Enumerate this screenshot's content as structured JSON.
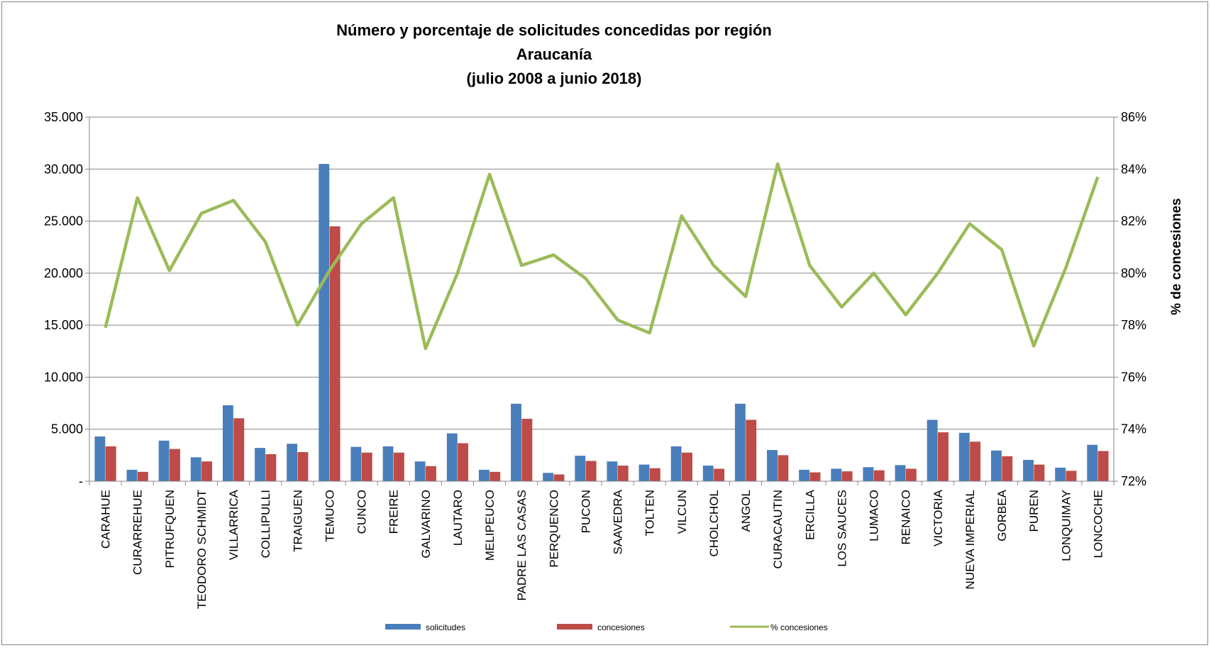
{
  "chart_data": {
    "type": "bar+line",
    "title_lines": [
      "Número y porcentaje de solicitudes concedidas por región",
      "Araucanía",
      "(julio 2008 a junio 2018)"
    ],
    "categories": [
      "CARAHUE",
      "CURARREHUE",
      "PITRUFQUEN",
      "TEODORO SCHMIDT",
      "VILLARRICA",
      "COLLIPULLI",
      "TRAIGUEN",
      "TEMUCO",
      "CUNCO",
      "FREIRE",
      "GALVARINO",
      "LAUTARO",
      "MELIPEUCO",
      "PADRE LAS CASAS",
      "PERQUENCO",
      "PUCON",
      "SAAVEDRA",
      "TOLTEN",
      "VILCUN",
      "CHOLCHOL",
      "ANGOL",
      "CURACAUTIN",
      "ERCILLA",
      "LOS SAUCES",
      "LUMACO",
      "RENAICO",
      "VICTORIA",
      "NUEVA IMPERIAL",
      "GORBEA",
      "PUREN",
      "LONQUIMAY",
      "LONCOCHE"
    ],
    "series": [
      {
        "name": "solicitudes",
        "type": "bar",
        "axis": "left",
        "color": "#4A7EBB",
        "values": [
          4300,
          1100,
          3900,
          2300,
          7300,
          3200,
          3600,
          30500,
          3300,
          3350,
          1900,
          4600,
          1100,
          7450,
          800,
          2450,
          1900,
          1600,
          3350,
          1500,
          7450,
          3000,
          1100,
          1200,
          1350,
          1550,
          5900,
          4650,
          2950,
          2050,
          1300,
          3500
        ]
      },
      {
        "name": "concesiones",
        "type": "bar",
        "axis": "left",
        "color": "#BE4B48",
        "values": [
          3350,
          900,
          3100,
          1900,
          6050,
          2600,
          2800,
          24500,
          2750,
          2750,
          1450,
          3650,
          900,
          6000,
          650,
          1950,
          1500,
          1250,
          2750,
          1200,
          5900,
          2500,
          850,
          950,
          1050,
          1200,
          4700,
          3800,
          2400,
          1600,
          1000,
          2900
        ]
      },
      {
        "name": "% concesiones",
        "type": "line",
        "axis": "right",
        "color": "#9BBB59",
        "values": [
          77.9,
          82.9,
          80.1,
          82.3,
          82.8,
          81.2,
          78.0,
          80.1,
          81.9,
          82.9,
          77.1,
          80.0,
          83.8,
          80.3,
          80.7,
          79.8,
          78.2,
          77.7,
          82.2,
          80.3,
          79.1,
          84.2,
          80.3,
          78.7,
          80.0,
          78.4,
          80.0,
          81.9,
          80.9,
          77.2,
          80.2,
          83.7
        ]
      }
    ],
    "y_left": {
      "range": [
        0,
        35000
      ],
      "step": 5000,
      "tick_labels": [
        "-",
        "5.000",
        "10.000",
        "15.000",
        "20.000",
        "25.000",
        "30.000",
        "35.000"
      ]
    },
    "y_right": {
      "range": [
        72,
        86
      ],
      "step": 2,
      "label": "% de concesiones",
      "tick_labels": [
        "72%",
        "74%",
        "76%",
        "78%",
        "80%",
        "82%",
        "84%",
        "86%"
      ]
    },
    "grid": true,
    "legend_position": "bottom"
  }
}
